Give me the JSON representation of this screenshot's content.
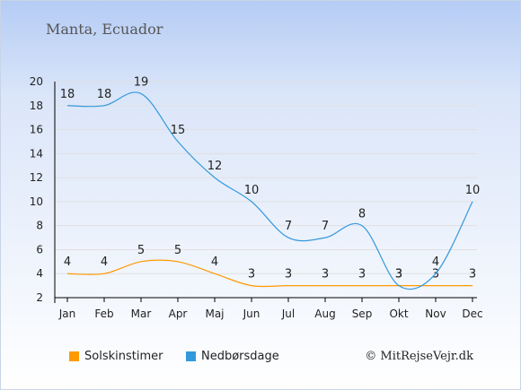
{
  "location": "Manta, Ecuador",
  "copyright": "© MitRejseVejr.dk",
  "colors": {
    "sun": "#ff9900",
    "rain": "#3399dd",
    "grid": "#e0e0e0",
    "axis": "#000000"
  },
  "chart_data": {
    "type": "line",
    "categories": [
      "Jan",
      "Feb",
      "Mar",
      "Apr",
      "Maj",
      "Jun",
      "Jul",
      "Aug",
      "Sep",
      "Okt",
      "Nov",
      "Dec"
    ],
    "series": [
      {
        "name": "Solskinstimer",
        "values": [
          4,
          4,
          5,
          5,
          4,
          3,
          3,
          3,
          3,
          3,
          3,
          3
        ]
      },
      {
        "name": "Nedbørsdage",
        "values": [
          18,
          18,
          19,
          15,
          12,
          10,
          7,
          7,
          8,
          3,
          4,
          10
        ]
      }
    ],
    "ylim": [
      2,
      20
    ],
    "yticks": [
      2,
      4,
      6,
      8,
      10,
      12,
      14,
      16,
      18,
      20
    ],
    "grid": true,
    "legend": "bottom"
  }
}
